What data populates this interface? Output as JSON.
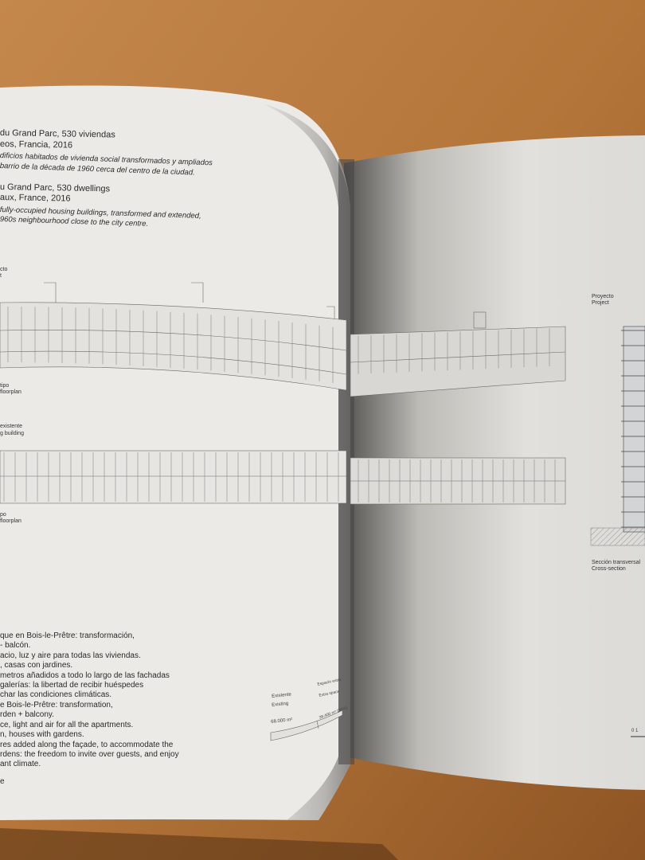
{
  "left_page": {
    "header_es": {
      "title": "du Grand Parc, 530 viviendas",
      "location": "eos, Francia, 2016",
      "desc": [
        "dificios habitados de vivienda social transformados y ampliados",
        "barrio de la década de 1960 cerca del centro de la ciudad."
      ]
    },
    "header_en": {
      "title": "u Grand Parc, 530 dwellings",
      "location": "aux, France, 2016",
      "desc": [
        "fully-occupied housing buildings, transformed and extended,",
        "960s neighbourhood close to the city centre."
      ]
    },
    "labels": {
      "project": [
        "cto",
        "t"
      ],
      "floorplan1": [
        "tipo",
        "floorplan"
      ],
      "existing": [
        "existente",
        "g building"
      ],
      "floorplan2": [
        "po",
        "floorplan"
      ]
    },
    "body_es": [
      "que en Bois-le-Prêtre: transformación,",
      "- balcón.",
      "acio, luz y aire para todas las viviendas.",
      ", casas con jardines.",
      "metros añadidos a todo lo largo de las fachadas",
      "galerías: la libertad de recibir huéspedes",
      "char las condiciones climáticas."
    ],
    "body_en": [
      "e Bois-le-Prêtre: transformation,",
      "rden + balcony.",
      "ce, light and air for all the apartments.",
      "n, houses with gardens.",
      "res added along the façade, to accommodate the",
      "rdens: the freedom to invite over guests, and enjoy",
      "ant climate."
    ],
    "footer_mark": "e",
    "diagram": {
      "existing_es": "Existente",
      "existing_en": "Existing",
      "existing_area": "68.000 m²",
      "extra_es": "Espacio extra",
      "extra_en": "Extra space",
      "extra_area": "38.400 m² (56%)"
    }
  },
  "right_page": {
    "project_label": [
      "Proyecto",
      "Project"
    ],
    "section_label": [
      "Sección transversal",
      "Cross-section"
    ],
    "scale": "0 1"
  },
  "colors": {
    "wood": "#b7793e",
    "paper": "#eceae4",
    "ink": "#2a2a2a"
  }
}
